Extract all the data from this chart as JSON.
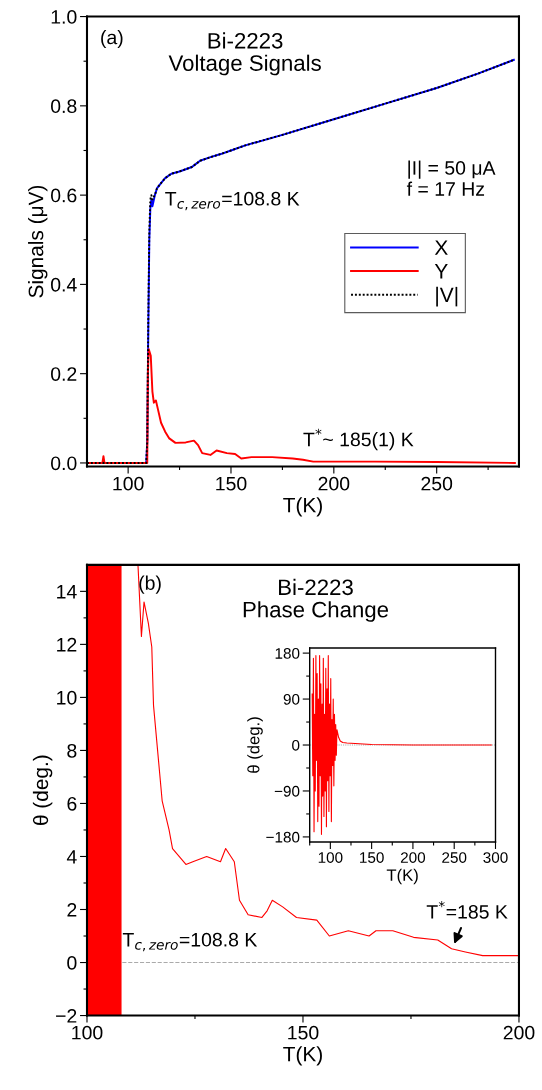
{
  "chart_data": [
    {
      "type": "line",
      "title": "Bi-2223\nVoltage Signals",
      "xlabel": "T(K)",
      "ylabel": "Signals (μV)",
      "xlim": [
        80,
        290
      ],
      "xticks": [
        100,
        {
          "value": 125,
          "label": null
        },
        150,
        {
          "value": 175,
          "label": null
        },
        200,
        {
          "value": 225,
          "label": null
        },
        250,
        {
          "value": 275,
          "label": null
        }
      ],
      "ylim": [
        -0.008,
        1.0
      ],
      "yticks": [
        {
          "value": 0,
          "label": "0.0"
        },
        {
          "value": 0.1,
          "label": null
        },
        0.2,
        {
          "value": 0.3,
          "label": null
        },
        0.4,
        {
          "value": 0.5,
          "label": null
        },
        0.6,
        {
          "value": 0.7,
          "label": null
        },
        0.8,
        {
          "value": 0.9,
          "label": null
        },
        {
          "value": 1,
          "label": "1.0"
        }
      ],
      "legend": "center right",
      "grid": false,
      "annotations": [
        "(a)",
        "T$_{c,zero}$=108.8 K",
        "|I| = 50 μA\nf = 17 Hz",
        "T$^{*}$~ 185(1) K"
      ],
      "series": [
        {
          "name": "X",
          "color": "#0000ff",
          "line_style": "solid",
          "x": [
            80,
            108.8,
            109.3,
            109.8,
            110.3,
            110.8,
            111.3,
            111.8,
            112.3,
            113,
            114,
            116,
            118,
            121,
            125,
            128,
            131,
            133,
            135,
            140,
            145,
            150,
            156.6,
            175,
            200,
            225,
            250,
            270,
            287.5
          ],
          "values": [
            0,
            0,
            0.05,
            0.3,
            0.5,
            0.57,
            0.59,
            0.575,
            0.585,
            0.6,
            0.615,
            0.627,
            0.638,
            0.648,
            0.653,
            0.658,
            0.663,
            0.67,
            0.677,
            0.685,
            0.692,
            0.7,
            0.711,
            0.735,
            0.77,
            0.805,
            0.84,
            0.872,
            0.903
          ]
        },
        {
          "name": "Y",
          "color": "#ff0000",
          "line_style": "solid",
          "x": [
            80,
            87.5,
            88,
            88.5,
            108.8,
            109.3,
            109.6,
            110,
            111,
            111.8,
            112.5,
            113.5,
            114.5,
            116,
            118,
            120,
            123,
            128,
            132,
            134,
            136,
            140,
            143,
            148,
            152,
            155,
            160,
            170,
            180,
            185,
            190,
            220,
            250,
            288
          ],
          "values": [
            0,
            0,
            0.015,
            0,
            0,
            0,
            0.2,
            0.255,
            0.24,
            0.16,
            0.135,
            0.14,
            0.12,
            0.09,
            0.07,
            0.055,
            0.045,
            0.046,
            0.05,
            0.04,
            0.022,
            0.018,
            0.028,
            0.022,
            0.02,
            0.01,
            0.013,
            0.013,
            0.01,
            0.007,
            0.003,
            0.003,
            0.002,
            0.0
          ]
        },
        {
          "name": "|V|",
          "color": "#000000",
          "line_style": "dotted",
          "x": [
            80,
            108.8,
            109.3,
            109.8,
            110.3,
            110.8,
            111.3,
            111.8,
            112.3,
            113,
            114,
            116,
            118,
            121,
            125,
            128,
            131,
            133,
            135,
            140,
            145,
            150,
            156.6,
            175,
            200,
            225,
            250,
            270,
            287.5
          ],
          "values": [
            0,
            0,
            0.05,
            0.32,
            0.52,
            0.59,
            0.6,
            0.59,
            0.595,
            0.6,
            0.615,
            0.627,
            0.638,
            0.648,
            0.653,
            0.658,
            0.663,
            0.67,
            0.677,
            0.685,
            0.692,
            0.7,
            0.711,
            0.735,
            0.77,
            0.805,
            0.84,
            0.872,
            0.903
          ]
        }
      ]
    },
    {
      "type": "line",
      "title": "Bi-2223\nPhase Change",
      "xlabel": "T(K)",
      "ylabel": "θ (deg.)",
      "xlim": [
        100,
        200
      ],
      "xticks": [
        100,
        {
          "value": 125,
          "label": null
        },
        150,
        {
          "value": 175,
          "label": null
        },
        200
      ],
      "ylim": [
        -2,
        15
      ],
      "yticks": [
        {
          "value": -2,
          "label": "−2"
        },
        {
          "value": -1,
          "label": null
        },
        0,
        {
          "value": 1,
          "label": null
        },
        2,
        {
          "value": 3,
          "label": null
        },
        4,
        {
          "value": 5,
          "label": null
        },
        6,
        {
          "value": 7,
          "label": null
        },
        8,
        {
          "value": 9,
          "label": null
        },
        10,
        {
          "value": 11,
          "label": null
        },
        12,
        {
          "value": 13,
          "label": null
        },
        14
      ],
      "grid": false,
      "ref_lines": [
        {
          "axis": "y",
          "value": 0,
          "color": "#aaaaaa",
          "line_style": "dashed"
        }
      ],
      "bands": [
        {
          "axis": "x",
          "from": 100,
          "to": 108,
          "color": "#ff0000"
        }
      ],
      "annotations": [
        "(b)",
        "T$_{c,zero}$=108.8 K",
        {
          "text": "T$^{*}$=185 K",
          "x": 185,
          "y": 0.7
        }
      ],
      "series": [
        {
          "color": "#ff0000",
          "line_style": "solid",
          "x": [
            111.8,
            112.6,
            113.2,
            114.2,
            115.0,
            115.4,
            117.4,
            119.0,
            119.8,
            122.9,
            124.5,
            127.7,
            130.9,
            132.1,
            134.1,
            135.3,
            137.3,
            140.5,
            141.7,
            142.9,
            145.3,
            148.5,
            153.2,
            156.1,
            160.5,
            165.3,
            166.9,
            170.8,
            175.6,
            181.2,
            184.4,
            187.6,
            191.6,
            200
          ],
          "values": [
            15.0,
            12.3,
            13.6,
            12.8,
            11.9,
            9.7,
            6.1,
            5.0,
            4.3,
            3.7,
            3.8,
            4.0,
            3.8,
            4.3,
            3.8,
            2.35,
            1.8,
            1.7,
            1.95,
            2.35,
            2.1,
            1.7,
            1.6,
            1.0,
            1.2,
            1.0,
            1.2,
            1.2,
            0.95,
            0.85,
            0.52,
            0.4,
            0.26,
            0.26
          ]
        }
      ]
    },
    {
      "type": "line",
      "xlabel": "T(K)",
      "ylabel": "θ (deg.)",
      "xlim": [
        75,
        300
      ],
      "xticks": [
        {
          "value": 75,
          "label": null
        },
        100,
        {
          "value": 125,
          "label": null
        },
        150,
        {
          "value": 175,
          "label": null
        },
        200,
        {
          "value": 225,
          "label": null
        },
        250,
        {
          "value": 275,
          "label": null
        },
        300
      ],
      "ylim": [
        -190,
        190
      ],
      "yticks": [
        {
          "value": -180,
          "label": "−180"
        },
        {
          "value": -135,
          "label": null
        },
        {
          "value": -90,
          "label": "−90"
        },
        {
          "value": -45,
          "label": null
        },
        0,
        {
          "value": 45,
          "label": null
        },
        90,
        {
          "value": 135,
          "label": null
        },
        180
      ],
      "grid": false,
      "ref_lines": [
        {
          "axis": "y",
          "value": 0,
          "color": "#aaaaaa",
          "line_style": "dotted"
        }
      ],
      "series": [
        {
          "color": "#ff0000",
          "line_style": "solid",
          "x": [
            78,
            78.75,
            79.5,
            80.25,
            81,
            81.75,
            82.5,
            83.25,
            84,
            84.75,
            85.5,
            86.25,
            87,
            87.75,
            88.5,
            89.25,
            90,
            90.75,
            91.5,
            92.25,
            93,
            93.75,
            94.5,
            95.25,
            96,
            96.75,
            97.5,
            98.25,
            99,
            99.75,
            100.5,
            101.25,
            102,
            102.75,
            103.5,
            104.25,
            105,
            105.75,
            106.5,
            107.25,
            108,
            110,
            112,
            115,
            120,
            130,
            140,
            150,
            200,
            295
          ],
          "values": [
            100,
            -60,
            170,
            -170,
            60,
            -90,
            175,
            -30,
            140,
            -150,
            90,
            -120,
            175,
            -60,
            120,
            -175,
            80,
            -100,
            170,
            -140,
            60,
            -90,
            150,
            -160,
            110,
            -70,
            175,
            -130,
            80,
            -60,
            130,
            -150,
            50,
            -40,
            90,
            -80,
            60,
            -30,
            40,
            -20,
            30,
            15,
            8,
            5,
            4,
            3,
            2,
            1,
            0,
            0
          ]
        }
      ]
    }
  ]
}
